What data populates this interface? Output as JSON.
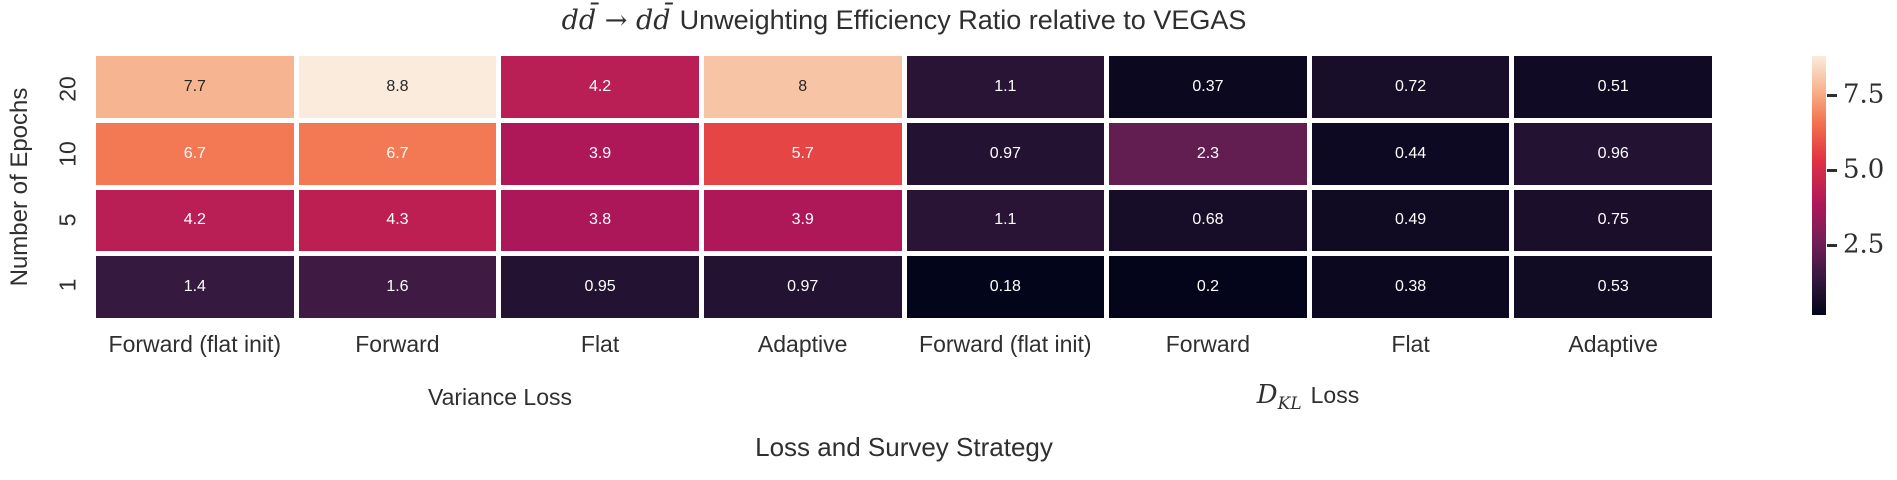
{
  "title": {
    "math": "dd̄ → dd̄",
    "rest": "Unweighting Efficiency Ratio relative to VEGAS"
  },
  "axes": {
    "xlabel": "Loss and Survey Strategy",
    "ylabel": "Number of Epochs"
  },
  "chart_data": {
    "type": "heatmap",
    "title": "dd̄ → dd̄ Unweighting Efficiency Ratio relative to VEGAS",
    "xlabel": "Loss and Survey Strategy",
    "ylabel": "Number of Epochs",
    "rows": [
      "20",
      "10",
      "5",
      "1"
    ],
    "columns": [
      "Forward (flat init)",
      "Forward",
      "Flat",
      "Adaptive",
      "Forward (flat init)",
      "Forward",
      "Flat",
      "Adaptive"
    ],
    "column_groups": [
      {
        "text": "Variance Loss",
        "span": 4
      },
      {
        "math": "D",
        "sub": "KL",
        "text": "Loss",
        "span": 4
      }
    ],
    "values": [
      [
        7.7,
        8.8,
        4.2,
        8,
        1.1,
        0.37,
        0.72,
        0.51
      ],
      [
        6.7,
        6.7,
        3.9,
        5.7,
        0.97,
        2.3,
        0.44,
        0.96
      ],
      [
        4.2,
        4.3,
        3.8,
        3.9,
        1.1,
        0.68,
        0.49,
        0.75
      ],
      [
        1.4,
        1.6,
        0.95,
        0.97,
        0.18,
        0.2,
        0.38,
        0.53
      ]
    ],
    "labels": [
      [
        "7.7",
        "8.8",
        "4.2",
        "8",
        "1.1",
        "0.37",
        "0.72",
        "0.51"
      ],
      [
        "6.7",
        "6.7",
        "3.9",
        "5.7",
        "0.97",
        "2.3",
        "0.44",
        "0.96"
      ],
      [
        "4.2",
        "4.3",
        "3.8",
        "3.9",
        "1.1",
        "0.68",
        "0.49",
        "0.75"
      ],
      [
        "1.4",
        "1.6",
        "0.95",
        "0.97",
        "0.18",
        "0.2",
        "0.38",
        "0.53"
      ]
    ],
    "colorbar": {
      "tick_labels": [
        "7.5",
        "5.0",
        "2.5"
      ],
      "tick_values": [
        7.5,
        5.0,
        2.5
      ],
      "vmin": 0.18,
      "vmax": 8.8
    },
    "colormap": {
      "name": "rocket",
      "stops": [
        [
          0.0,
          "#03051A"
        ],
        [
          0.14,
          "#35193E"
        ],
        [
          0.28,
          "#701F57"
        ],
        [
          0.425,
          "#AD1759"
        ],
        [
          0.6,
          "#E13342"
        ],
        [
          0.75,
          "#F37651"
        ],
        [
          0.87,
          "#F6B48F"
        ],
        [
          1.0,
          "#FAEBDD"
        ]
      ]
    },
    "annotation_text_colors": {
      "on_dark": "#ffffff",
      "on_light": "#262626"
    },
    "legend_position": "right-colorbar",
    "grid": false
  }
}
